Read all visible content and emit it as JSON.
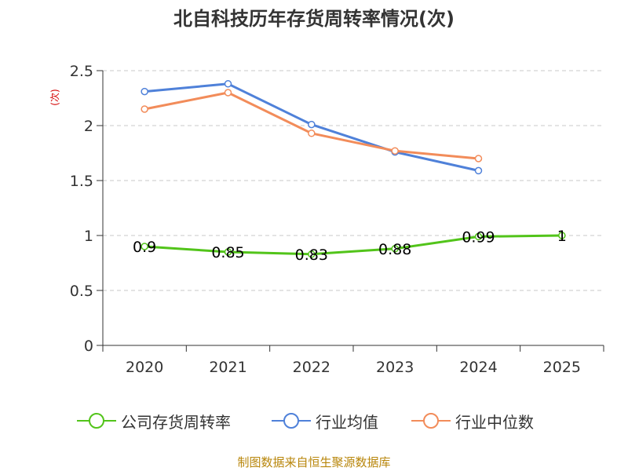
{
  "chart_data": {
    "type": "line",
    "title": "北自科技历年存货周转率情况(次)",
    "ylabel": "(次)",
    "categories": [
      "2020",
      "2021",
      "2022",
      "2023",
      "2024",
      "2025"
    ],
    "ylim": [
      0,
      2.5
    ],
    "yticks": [
      "0",
      "0.5",
      "1",
      "1.5",
      "2",
      "2.5"
    ],
    "grid": true,
    "legend_position": "bottom",
    "series": [
      {
        "name": "公司存货周转率",
        "color": "#52c41a",
        "values": [
          0.9,
          0.85,
          0.83,
          0.88,
          0.99,
          1
        ],
        "labels": [
          "0.9",
          "0.85",
          "0.83",
          "0.88",
          "0.99",
          "1"
        ]
      },
      {
        "name": "行业均值",
        "color": "#4f81d9",
        "values": [
          2.31,
          2.38,
          2.01,
          1.76,
          1.59,
          null
        ]
      },
      {
        "name": "行业中位数",
        "color": "#f28c5a",
        "values": [
          2.15,
          2.3,
          1.93,
          1.77,
          1.7,
          null
        ]
      }
    ]
  },
  "source": "制图数据来自恒生聚源数据库"
}
